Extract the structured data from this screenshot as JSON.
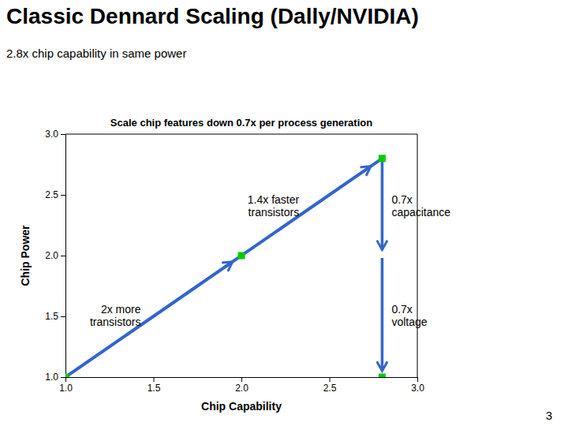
{
  "chart_data": {
    "type": "line",
    "title": "Classic Dennard Scaling (Dally/NVIDIA)",
    "subtitle": "2.8x chip capability in same power",
    "chart_title": "Scale chip features down 0.7x per process generation",
    "xlabel": "Chip Capability",
    "ylabel": "Chip Power",
    "xlim": [
      1,
      3
    ],
    "ylim": [
      1,
      3
    ],
    "xticks": [
      {
        "value": 1,
        "label": "1.0"
      },
      {
        "value": 1.5,
        "label": "1.5"
      },
      {
        "value": 2,
        "label": "2.0"
      },
      {
        "value": 2.5,
        "label": "2.5"
      },
      {
        "value": 3,
        "label": "3.0"
      }
    ],
    "yticks": [
      {
        "value": 1,
        "label": "1.0"
      },
      {
        "value": 1.5,
        "label": "1.5"
      },
      {
        "value": 2,
        "label": "2.0"
      },
      {
        "value": 2.5,
        "label": "2.5"
      },
      {
        "value": 3,
        "label": "3.0"
      }
    ],
    "grid": false,
    "series": [
      {
        "type": "line",
        "color": "#3366cc",
        "x": [
          1,
          2.8
        ],
        "values": [
          1,
          2.8
        ]
      },
      {
        "type": "scatter",
        "color": "#00cc00",
        "marker": "square",
        "x": [
          1,
          2,
          2.8,
          2.8
        ],
        "values": [
          1,
          2,
          2.8,
          1
        ]
      }
    ],
    "annotations": [
      "2x more\ntransistors",
      "1.4x faster\ntransistors",
      "0.7x\ncapacitance",
      "0.7x\nvoltage"
    ],
    "page_number": "3"
  }
}
